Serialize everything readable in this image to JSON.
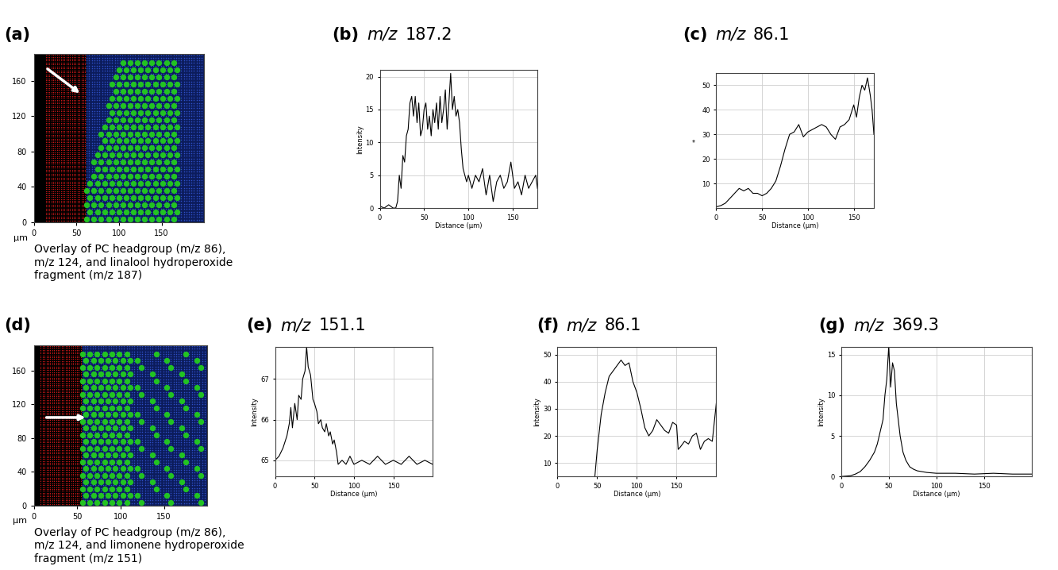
{
  "chart_data": [
    {
      "type": "image",
      "panel_label": "(a)",
      "caption": "Overlay of PC headgroup (m/z 86),\nm/z 124, and linalool hydroperoxide\nfragment (m/z 187)",
      "unit_label": "µm",
      "xlim": [
        0,
        200
      ],
      "ylim": [
        0,
        190
      ],
      "xticks": [
        0,
        50,
        100,
        150
      ],
      "yticks": [
        0,
        40,
        80,
        120,
        160
      ],
      "grid": false
    },
    {
      "type": "line",
      "panel_label": "(b)",
      "title": "m/z 187.2",
      "x_label": "Distance (µm)",
      "y_label": "Intensity",
      "color": "#000000",
      "xlim": [
        0,
        178
      ],
      "ylim": [
        0,
        21
      ],
      "xticks": [
        0,
        50,
        100,
        150
      ],
      "yticks": [
        0,
        5,
        10,
        15,
        20
      ],
      "grid": true,
      "x": [
        0,
        5,
        10,
        15,
        18,
        20,
        22,
        24,
        26,
        28,
        30,
        32,
        34,
        36,
        38,
        40,
        42,
        44,
        46,
        48,
        50,
        52,
        54,
        56,
        58,
        60,
        62,
        64,
        66,
        68,
        70,
        72,
        74,
        76,
        78,
        80,
        82,
        84,
        86,
        88,
        90,
        92,
        94,
        96,
        98,
        100,
        104,
        108,
        112,
        116,
        120,
        124,
        128,
        132,
        136,
        140,
        144,
        148,
        152,
        156,
        160,
        164,
        168,
        172,
        176,
        178
      ],
      "values": [
        0.3,
        0,
        0.5,
        0,
        0,
        1,
        5,
        3,
        8,
        7,
        11,
        12,
        16,
        17,
        14,
        17,
        13,
        16,
        11,
        12,
        15,
        16,
        12,
        14,
        11,
        15,
        13,
        16,
        12,
        17,
        13,
        15,
        18,
        12,
        16,
        20.5,
        15,
        17,
        14,
        15,
        13,
        9,
        6,
        5,
        4,
        5,
        3,
        5,
        4,
        6,
        2,
        5,
        1,
        4,
        5,
        3,
        4,
        7,
        3,
        4,
        2,
        5,
        3,
        4,
        5,
        3
      ]
    },
    {
      "type": "line",
      "panel_label": "(c)",
      "title": "m/z 86.1",
      "x_label": "Distance (µm)",
      "y_label": "*",
      "color": "#000000",
      "xlim": [
        0,
        172
      ],
      "ylim": [
        0,
        55
      ],
      "xticks": [
        0,
        50,
        100,
        150
      ],
      "yticks": [
        10,
        20,
        30,
        40,
        50
      ],
      "grid": true,
      "x": [
        0,
        5,
        10,
        15,
        20,
        25,
        30,
        35,
        40,
        45,
        50,
        55,
        60,
        65,
        70,
        75,
        80,
        85,
        90,
        95,
        100,
        105,
        110,
        115,
        120,
        125,
        130,
        135,
        140,
        145,
        150,
        153,
        156,
        159,
        162,
        165,
        168,
        170,
        172
      ],
      "values": [
        0.5,
        1,
        2,
        4,
        6,
        8,
        7,
        8,
        6,
        6,
        5,
        6,
        8,
        11,
        17,
        24,
        30,
        31,
        34,
        29,
        31,
        32,
        33,
        34,
        33,
        30,
        28,
        33,
        34,
        36,
        42,
        37,
        45,
        50,
        48,
        53,
        46,
        40,
        30
      ]
    },
    {
      "type": "image",
      "panel_label": "(d)",
      "caption": "Overlay of PC headgroup (m/z 86),\nm/z 124, and limonene hydroperoxide\nfragment (m/z 151)",
      "unit_label": "µm",
      "xlim": [
        0,
        200
      ],
      "ylim": [
        0,
        190
      ],
      "xticks": [
        0,
        50,
        100,
        150
      ],
      "yticks": [
        0,
        40,
        80,
        120,
        160
      ],
      "grid": false
    },
    {
      "type": "line",
      "panel_label": "(e)",
      "title": "m/z 151.1",
      "x_label": "Distance (µm)",
      "y_label": "Intensity",
      "color": "#000000",
      "xlim": [
        0,
        200
      ],
      "ylim": [
        64.6,
        67.8
      ],
      "xticks": [
        0,
        50,
        100,
        150
      ],
      "yticks": [
        65,
        66,
        67
      ],
      "grid": true,
      "x": [
        0,
        5,
        10,
        15,
        18,
        20,
        22,
        25,
        28,
        30,
        33,
        35,
        38,
        40,
        42,
        45,
        48,
        50,
        53,
        55,
        58,
        60,
        63,
        65,
        68,
        70,
        73,
        75,
        78,
        80,
        85,
        90,
        95,
        100,
        110,
        120,
        130,
        140,
        150,
        160,
        170,
        180,
        190,
        200
      ],
      "values": [
        65.0,
        65.1,
        65.3,
        65.6,
        65.9,
        66.3,
        65.8,
        66.4,
        66.0,
        66.6,
        66.5,
        67.0,
        67.2,
        67.8,
        67.3,
        67.1,
        66.5,
        66.4,
        66.2,
        65.9,
        66.0,
        65.8,
        65.7,
        65.9,
        65.6,
        65.7,
        65.4,
        65.5,
        65.2,
        64.9,
        65.0,
        64.9,
        65.1,
        64.9,
        65.0,
        64.9,
        65.1,
        64.9,
        65.0,
        64.9,
        65.1,
        64.9,
        65.0,
        64.9
      ]
    },
    {
      "type": "line",
      "panel_label": "(f)",
      "title": "m/z 86.1",
      "x_label": "Distance (µm)",
      "y_label": "Intensity",
      "color": "#000000",
      "xlim": [
        0,
        200
      ],
      "ylim": [
        5,
        53
      ],
      "xticks": [
        0,
        50,
        100,
        150
      ],
      "yticks": [
        10,
        20,
        30,
        40,
        50
      ],
      "grid": true,
      "x": [
        47,
        50,
        55,
        60,
        65,
        70,
        75,
        80,
        85,
        90,
        95,
        100,
        105,
        110,
        115,
        120,
        125,
        130,
        135,
        140,
        145,
        150,
        152,
        155,
        160,
        165,
        170,
        175,
        180,
        185,
        190,
        195,
        200
      ],
      "values": [
        5,
        15,
        28,
        36,
        42,
        44,
        46,
        48,
        46,
        47,
        40,
        36,
        30,
        23,
        20,
        22,
        26,
        24,
        22,
        21,
        25,
        24,
        15,
        16,
        18,
        17,
        20,
        21,
        15,
        18,
        19,
        18,
        32
      ]
    },
    {
      "type": "line",
      "panel_label": "(g)",
      "title": "m/z 369.3",
      "x_label": "Distance (µm)",
      "y_label": "Intensity",
      "color": "#000000",
      "xlim": [
        0,
        200
      ],
      "ylim": [
        0,
        16
      ],
      "xticks": [
        0,
        50,
        100,
        150
      ],
      "yticks": [
        0,
        5,
        10,
        15
      ],
      "grid": true,
      "x": [
        0,
        10,
        15,
        20,
        25,
        30,
        35,
        38,
        40,
        42,
        44,
        46,
        48,
        50,
        52,
        54,
        56,
        58,
        60,
        62,
        65,
        68,
        72,
        76,
        80,
        90,
        100,
        120,
        140,
        160,
        180,
        200
      ],
      "values": [
        0,
        0.1,
        0.3,
        0.6,
        1.2,
        2,
        3,
        4,
        5,
        6,
        7,
        10,
        12,
        16,
        11,
        14,
        13,
        9,
        7,
        5,
        3,
        2,
        1.2,
        0.9,
        0.7,
        0.5,
        0.4,
        0.4,
        0.3,
        0.4,
        0.3,
        0.3
      ]
    }
  ]
}
